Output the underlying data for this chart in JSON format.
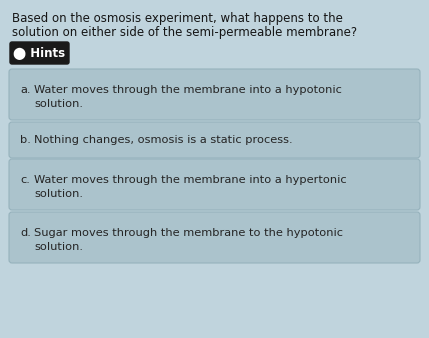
{
  "background_color": "#c0d4dd",
  "question_line1": "Based on the osmosis experiment, what happens to the",
  "question_line2": "solution on either side of the semi-permeable membrane?",
  "hints_label": "⬤ Hints",
  "hints_icon": "■",
  "hints_bg": "#1a1a1a",
  "hints_text_color": "#ffffff",
  "options": [
    {
      "label": "a.",
      "line1": "Water moves through the membrane into a hypotonic",
      "line2": "solution."
    },
    {
      "label": "b.",
      "line1": "Nothing changes, osmosis is a static process.",
      "line2": ""
    },
    {
      "label": "c.",
      "line1": "Water moves through the membrane into a hypertonic",
      "line2": "solution."
    },
    {
      "label": "d.",
      "line1": "Sugar moves through the membrane to the hypotonic",
      "line2": "solution."
    }
  ],
  "option_bg": "#abc3cc",
  "option_border": "#96b2bc",
  "option_text_color": "#252525",
  "question_text_color": "#151515",
  "question_fontsize": 8.5,
  "option_fontsize": 8.2,
  "hints_fontsize": 8.5,
  "fig_width": 4.29,
  "fig_height": 3.38,
  "dpi": 100
}
